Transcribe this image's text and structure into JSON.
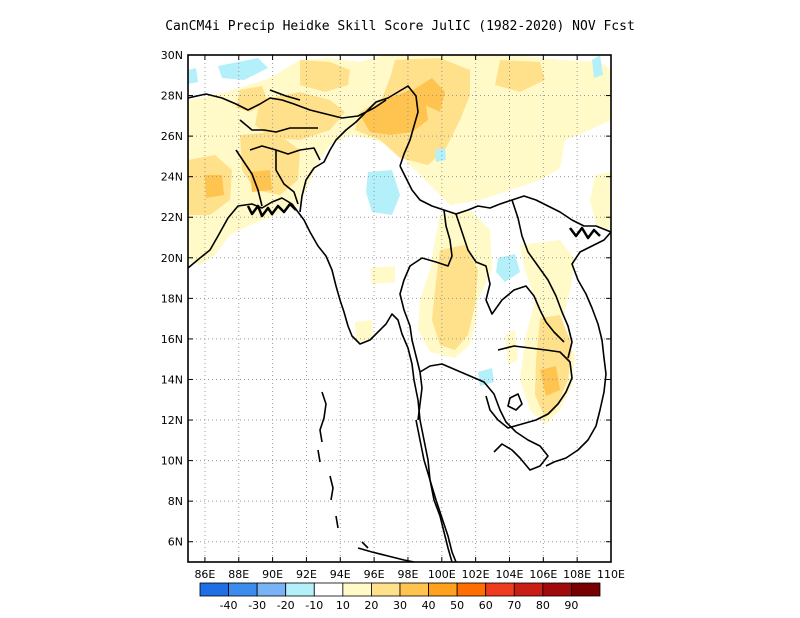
{
  "title": "CanCM4i Precip Heidke Skill Score JulIC (1982-2020) NOV Fcst",
  "map": {
    "lon_range": [
      85,
      110
    ],
    "lat_range": [
      5,
      30
    ],
    "lon_ticks": [
      "86E",
      "88E",
      "90E",
      "92E",
      "94E",
      "96E",
      "98E",
      "100E",
      "102E",
      "104E",
      "106E",
      "108E",
      "110E"
    ],
    "lat_ticks": [
      "6N",
      "8N",
      "10N",
      "12N",
      "14N",
      "16N",
      "18N",
      "20N",
      "22N",
      "24N",
      "26N",
      "28N",
      "30N"
    ],
    "grid": "dotted"
  },
  "colorbar": {
    "labels": [
      "-40",
      "-30",
      "-20",
      "-10",
      "10",
      "20",
      "30",
      "40",
      "50",
      "60",
      "70",
      "80",
      "90"
    ],
    "colors": [
      "#1e6ee6",
      "#3c8ced",
      "#78b4f5",
      "#b4f0fa",
      "#ffffff",
      "#fffac8",
      "#ffe18c",
      "#ffc350",
      "#ffa01e",
      "#ff6e00",
      "#f03c1e",
      "#c81e14",
      "#a00a0a",
      "#780000"
    ]
  },
  "colors": {
    "light_cyan": "#b4f0fa",
    "light_yellow": "#fffac8",
    "yellow": "#ffe18c",
    "orange": "#ffc350"
  }
}
